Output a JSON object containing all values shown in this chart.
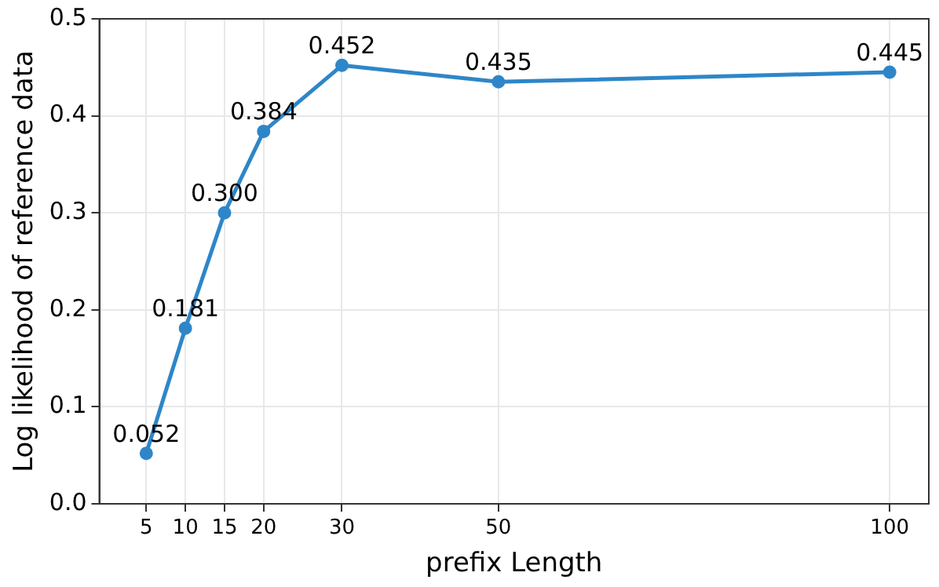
{
  "chart_data": {
    "type": "line",
    "xlabel": "prefix Length",
    "ylabel": "Log likelihood of reference data",
    "x": [
      5,
      10,
      15,
      20,
      30,
      50,
      100
    ],
    "series": [
      {
        "color": "#2e86c8",
        "values": [
          0.052,
          0.181,
          0.3,
          0.384,
          0.452,
          0.435,
          0.445
        ],
        "value_labels": [
          "0.052",
          "0.181",
          "0.300",
          "0.384",
          "0.452",
          "0.435",
          "0.445"
        ]
      }
    ],
    "xlim": [
      -1,
      105
    ],
    "xticks": [
      5,
      10,
      15,
      20,
      30,
      50,
      100
    ],
    "ylim": [
      0,
      0.5
    ],
    "yticks": [
      {
        "value": 0,
        "label": "0.0"
      },
      {
        "value": 0.1,
        "label": "0.1"
      },
      {
        "value": 0.2,
        "label": "0.2"
      },
      {
        "value": 0.3,
        "label": "0.3"
      },
      {
        "value": 0.4,
        "label": "0.4"
      },
      {
        "value": 0.5,
        "label": "0.5"
      }
    ],
    "grid": true,
    "legend": false,
    "marker": "circle",
    "line_style": "solid"
  }
}
